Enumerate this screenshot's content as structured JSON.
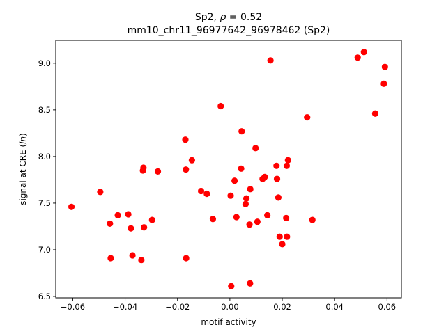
{
  "chart_data": {
    "type": "scatter",
    "title_line1_prefix": "Sp2, ",
    "title_line1_rho": "ρ",
    "title_line1_suffix": " = 0.52",
    "title_line2": "mm10_chr11_96977642_96978462 (Sp2)",
    "xlabel": "motif activity",
    "ylabel_prefix": "signal at CRE (",
    "ylabel_italic": "ln",
    "ylabel_suffix": ")",
    "xlim": [
      -0.0665,
      0.0655
    ],
    "ylim": [
      6.485,
      9.245
    ],
    "xticks": [
      -0.06,
      -0.04,
      -0.02,
      0.0,
      0.02,
      0.04,
      0.06
    ],
    "xtick_labels": [
      "−0.06",
      "−0.04",
      "−0.02",
      "0.00",
      "0.02",
      "0.04",
      "0.06"
    ],
    "yticks": [
      6.5,
      7.0,
      7.5,
      8.0,
      8.5,
      9.0
    ],
    "ytick_labels": [
      "6.5",
      "7.0",
      "7.5",
      "8.0",
      "8.5",
      "9.0"
    ],
    "marker_color": "#ff0000",
    "grid": false,
    "x": [
      -0.0605,
      -0.0495,
      -0.0458,
      -0.0455,
      -0.0428,
      -0.0388,
      -0.0378,
      -0.0372,
      -0.0338,
      -0.0332,
      -0.033,
      -0.0328,
      -0.0297,
      -0.0275,
      -0.017,
      -0.0168,
      -0.0167,
      -0.0145,
      -0.011,
      -0.0088,
      -0.0065,
      -0.0035,
      0.0003,
      0.0005,
      0.0018,
      0.0025,
      0.0043,
      0.0045,
      0.006,
      0.0063,
      0.0075,
      0.0077,
      0.0078,
      0.0098,
      0.0105,
      0.0125,
      0.0133,
      0.0143,
      0.0155,
      0.0178,
      0.018,
      0.0185,
      0.019,
      0.02,
      0.0215,
      0.0217,
      0.0218,
      0.0222,
      0.0295,
      0.0315,
      0.0488,
      0.0512,
      0.0555,
      0.0588,
      0.0592
    ],
    "y": [
      7.46,
      7.62,
      7.28,
      6.91,
      7.37,
      7.38,
      7.23,
      6.94,
      6.89,
      7.85,
      7.88,
      7.24,
      7.32,
      7.84,
      8.18,
      7.86,
      6.91,
      7.96,
      7.63,
      7.6,
      7.33,
      8.54,
      7.58,
      6.61,
      7.74,
      7.35,
      7.87,
      8.27,
      7.49,
      7.55,
      7.27,
      6.64,
      7.65,
      8.09,
      7.3,
      7.76,
      7.78,
      7.37,
      9.03,
      7.9,
      7.76,
      7.56,
      7.14,
      7.06,
      7.34,
      7.9,
      7.14,
      7.96,
      8.42,
      7.32,
      9.06,
      9.12,
      8.46,
      8.78,
      8.96
    ]
  }
}
